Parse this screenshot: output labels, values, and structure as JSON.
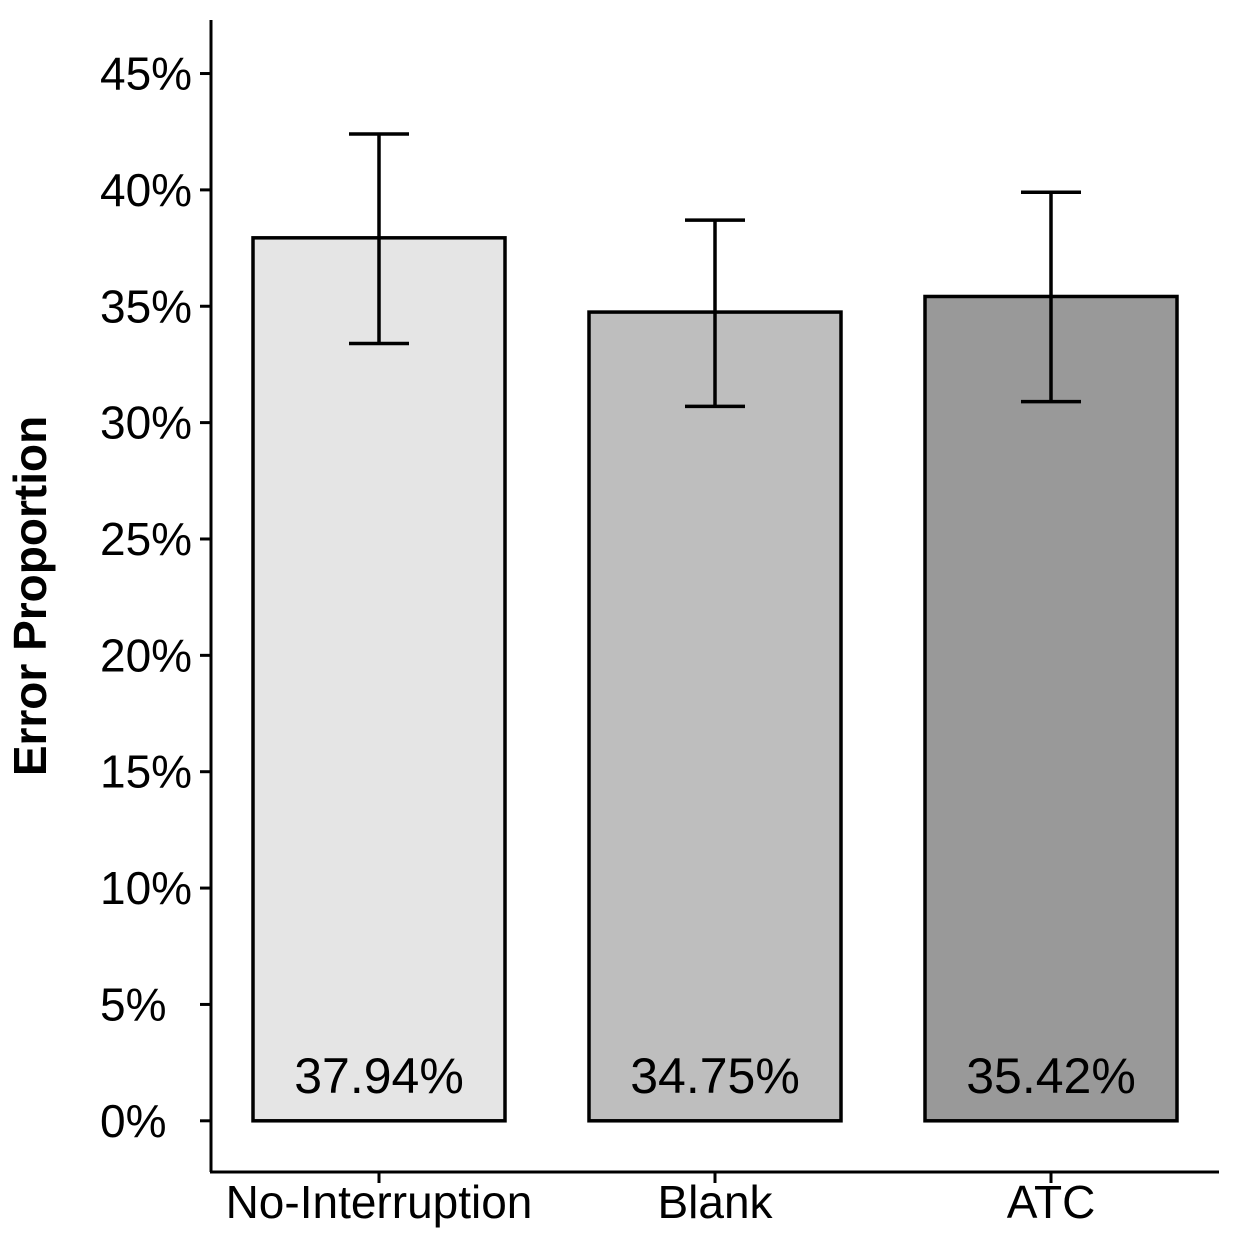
{
  "chart_data": {
    "type": "bar",
    "title": "",
    "xlabel": "",
    "ylabel": "Error Proportion",
    "categories": [
      "No-Interruption",
      "Blank",
      "ATC"
    ],
    "values": [
      37.94,
      34.75,
      35.42
    ],
    "value_labels": [
      "37.94%",
      "34.75%",
      "35.42%"
    ],
    "error_bars": [
      {
        "low": 33.4,
        "high": 42.4
      },
      {
        "low": 30.7,
        "high": 38.7
      },
      {
        "low": 30.9,
        "high": 39.9
      }
    ],
    "bar_colors": [
      "#e5e5e5",
      "#bebebe",
      "#999999"
    ],
    "ylim": [
      -2.2,
      47.3
    ],
    "yticks": [
      0,
      5,
      10,
      15,
      20,
      25,
      30,
      35,
      40,
      45
    ],
    "ytick_labels": [
      "0%",
      "5%",
      "10%",
      "15%",
      "20%",
      "25%",
      "30%",
      "35%",
      "40%",
      "45%"
    ],
    "grid": false,
    "legend": "none"
  }
}
